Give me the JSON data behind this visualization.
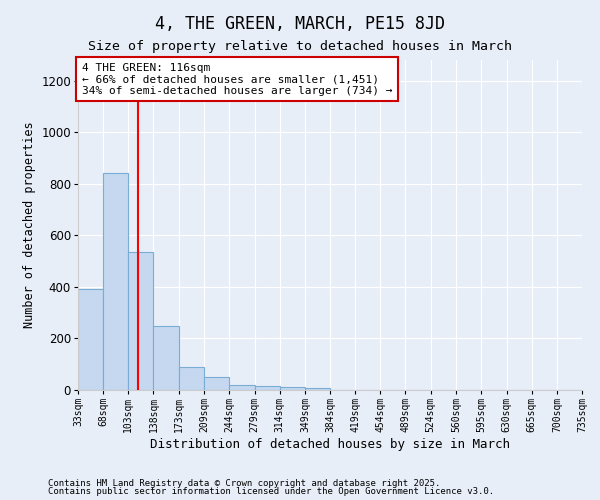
{
  "title": "4, THE GREEN, MARCH, PE15 8JD",
  "subtitle": "Size of property relative to detached houses in March",
  "xlabel": "Distribution of detached houses by size in March",
  "ylabel": "Number of detached properties",
  "bar_edges": [
    33,
    68,
    103,
    138,
    173,
    209,
    244,
    279,
    314,
    349,
    384,
    419,
    454,
    489,
    524,
    560,
    595,
    630,
    665,
    700,
    735
  ],
  "bar_heights": [
    390,
    840,
    535,
    250,
    90,
    50,
    20,
    15,
    12,
    8,
    0,
    0,
    0,
    0,
    0,
    0,
    0,
    0,
    0,
    0
  ],
  "bar_color": "#c5d8f0",
  "bar_edge_color": "#7aadd4",
  "bg_color": "#e8eef8",
  "grid_color": "#ffffff",
  "red_line_x": 116,
  "annotation_text": "4 THE GREEN: 116sqm\n← 66% of detached houses are smaller (1,451)\n34% of semi-detached houses are larger (734) →",
  "annotation_box_color": "#ffffff",
  "annotation_box_edge_color": "#cc0000",
  "ylim": [
    0,
    1280
  ],
  "yticks": [
    0,
    200,
    400,
    600,
    800,
    1000,
    1200
  ],
  "tick_labels": [
    "33sqm",
    "68sqm",
    "103sqm",
    "138sqm",
    "173sqm",
    "209sqm",
    "244sqm",
    "279sqm",
    "314sqm",
    "349sqm",
    "384sqm",
    "419sqm",
    "454sqm",
    "489sqm",
    "524sqm",
    "560sqm",
    "595sqm",
    "630sqm",
    "665sqm",
    "700sqm",
    "735sqm"
  ],
  "footnote1": "Contains HM Land Registry data © Crown copyright and database right 2025.",
  "footnote2": "Contains public sector information licensed under the Open Government Licence v3.0.",
  "title_fontsize": 12,
  "subtitle_fontsize": 9.5,
  "xlabel_fontsize": 9,
  "ylabel_fontsize": 8.5,
  "tick_fontsize": 7,
  "annotation_fontsize": 8,
  "footnote_fontsize": 6.5
}
